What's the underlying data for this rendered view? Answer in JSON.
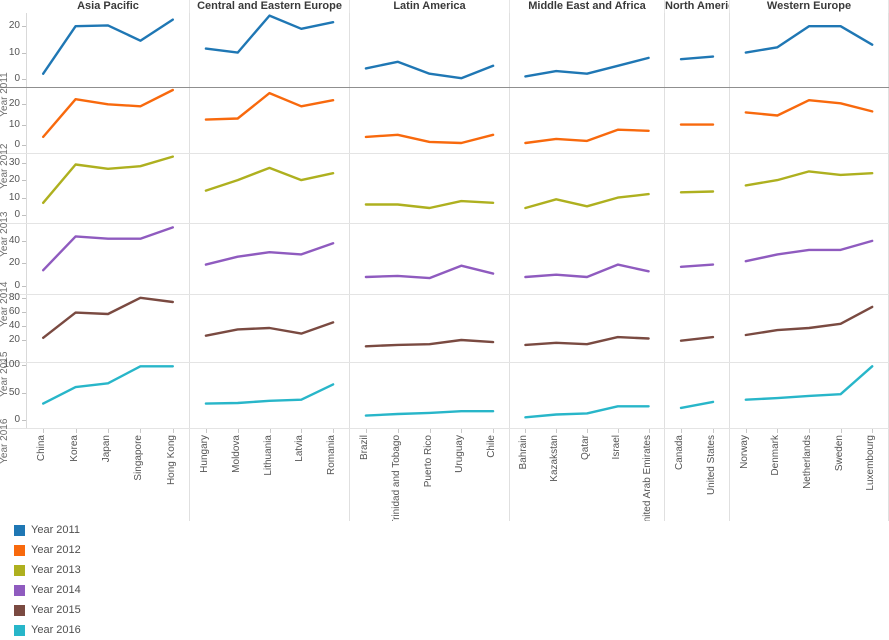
{
  "legend": {
    "position": "bottom-left"
  },
  "chart_data": {
    "type": "line",
    "layout": "small-multiples-trellis",
    "grid": false,
    "columns": [
      {
        "label": "Asia Pacific",
        "categories": [
          "China",
          "Korea",
          "Japan",
          "Singapore",
          "Hong Kong"
        ]
      },
      {
        "label": "Central and Eastern Europe",
        "categories": [
          "Hungary",
          "Moldova",
          "Lithuania",
          "Latvia",
          "Romania"
        ]
      },
      {
        "label": "Latin America",
        "categories": [
          "Brazil",
          "Trinidad and Tobago",
          "Puerto Rico",
          "Uruguay",
          "Chile"
        ]
      },
      {
        "label": "Middle East and Africa",
        "categories": [
          "Bahrain",
          "Kazakstan",
          "Qatar",
          "Israel",
          "United Arab Emirates"
        ]
      },
      {
        "label": "North America",
        "categories": [
          "Canada",
          "United States"
        ]
      },
      {
        "label": "Western Europe",
        "categories": [
          "Norway",
          "Denmark",
          "Netherlands",
          "Sweden",
          "Luxembourg"
        ]
      }
    ],
    "rows": [
      {
        "label": "Year 2011",
        "color": "#1F77B4",
        "ticks": [
          0,
          10,
          20
        ],
        "ylim": [
          0,
          25
        ],
        "values": [
          [
            2,
            20,
            20.3,
            14.5,
            22.5
          ],
          [
            11.5,
            10,
            24,
            19,
            21.5
          ],
          [
            4,
            6.5,
            2,
            0.3,
            5
          ],
          [
            1,
            3,
            2,
            5,
            8
          ],
          [
            7.5,
            8.5
          ],
          [
            10,
            12,
            20,
            20,
            13
          ]
        ]
      },
      {
        "label": "Year 2012",
        "color": "#F8690D",
        "ticks": [
          0,
          10,
          20
        ],
        "ylim": [
          0,
          28
        ],
        "values": [
          [
            4,
            22.5,
            20,
            19,
            27
          ],
          [
            12.5,
            13,
            25.5,
            19,
            22
          ],
          [
            4,
            5,
            1.5,
            1,
            5
          ],
          [
            1,
            3,
            2,
            7.5,
            7
          ],
          [
            10,
            10
          ],
          [
            16,
            14.5,
            22,
            20.5,
            16.5
          ]
        ]
      },
      {
        "label": "Year 2013",
        "color": "#AEB01F",
        "ticks": [
          0,
          10,
          20,
          30
        ],
        "ylim": [
          0,
          35
        ],
        "values": [
          [
            7,
            29,
            26.5,
            28,
            33.5
          ],
          [
            14,
            20,
            27,
            20,
            24
          ],
          [
            6,
            6,
            4,
            8,
            7
          ],
          [
            4,
            9,
            5,
            10,
            12
          ],
          [
            13,
            13.5
          ],
          [
            17,
            20,
            25,
            23,
            24
          ]
        ]
      },
      {
        "label": "Year 2014",
        "color": "#8F5BBF",
        "ticks": [
          0,
          20,
          40
        ],
        "ylim": [
          0,
          55
        ],
        "values": [
          [
            14,
            44,
            42,
            42,
            52
          ],
          [
            19,
            26,
            30,
            28,
            38
          ],
          [
            8,
            9,
            7,
            18,
            11
          ],
          [
            8,
            10,
            8,
            19,
            13
          ],
          [
            17,
            19
          ],
          [
            22,
            28,
            32,
            32,
            40
          ]
        ]
      },
      {
        "label": "Year 2015",
        "color": "#7A4A41",
        "ticks": [
          20,
          40,
          60,
          80
        ],
        "ylim": [
          0,
          84
        ],
        "values": [
          [
            23,
            59,
            57,
            80,
            74
          ],
          [
            26,
            35,
            37,
            29,
            45
          ],
          [
            11,
            13,
            14,
            20,
            17
          ],
          [
            13,
            16,
            14,
            24,
            22
          ],
          [
            19,
            24
          ],
          [
            27,
            34,
            37,
            43,
            67
          ]
        ]
      },
      {
        "label": "Year 2016",
        "color": "#28B6C9",
        "ticks": [
          0,
          50,
          100
        ],
        "ylim": [
          0,
          104
        ],
        "values": [
          [
            30,
            60,
            67,
            98,
            98
          ],
          [
            30,
            31,
            35,
            37,
            65
          ],
          [
            8,
            11,
            13,
            16,
            16
          ],
          [
            5,
            10,
            12,
            25,
            25
          ],
          [
            22,
            33
          ],
          [
            37,
            40,
            44,
            47,
            98
          ]
        ]
      }
    ]
  }
}
